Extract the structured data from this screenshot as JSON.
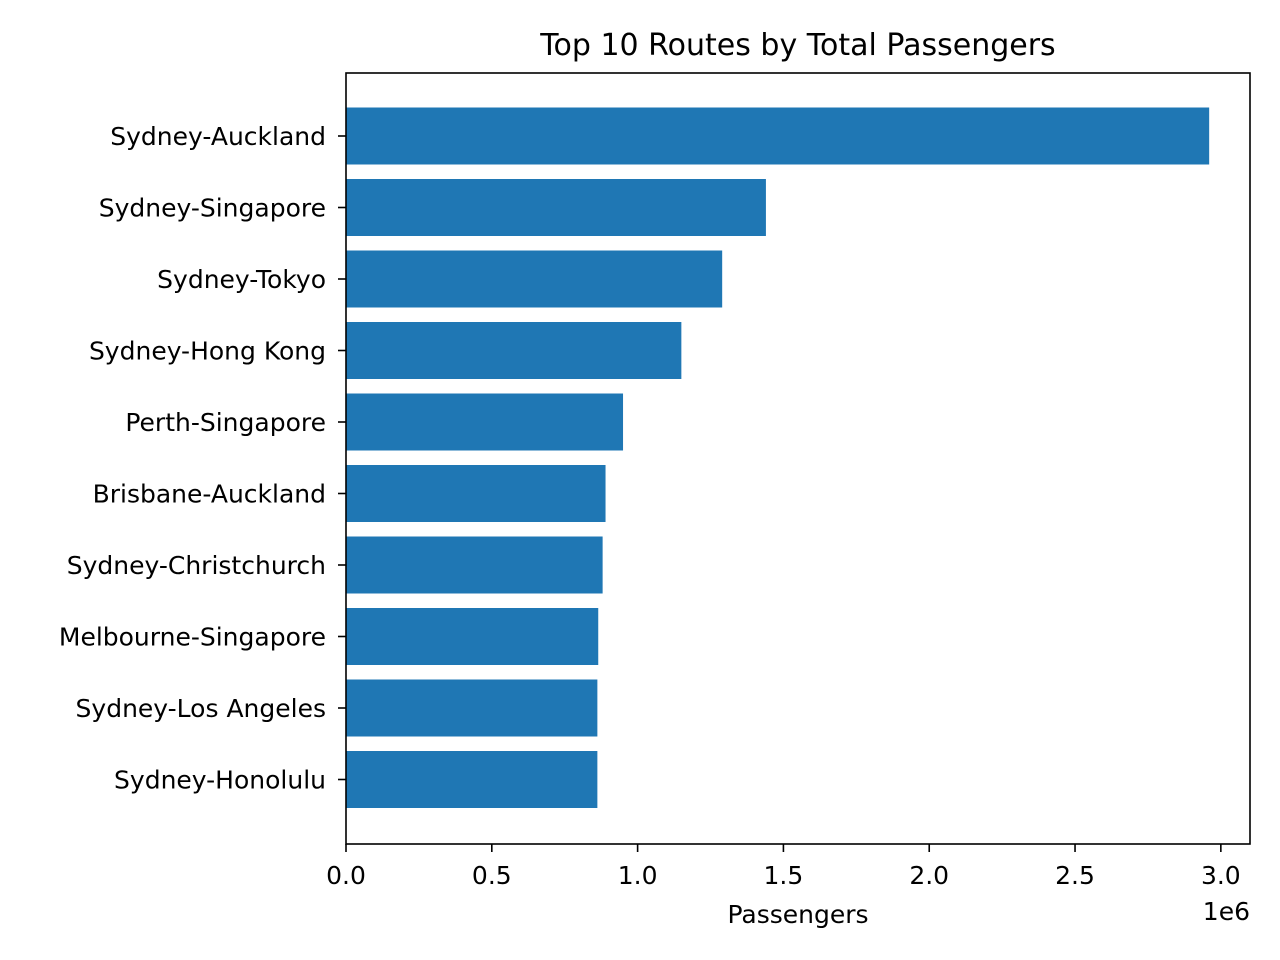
{
  "chart_data": {
    "type": "bar",
    "orientation": "horizontal",
    "title": "Top 10 Routes by Total Passengers",
    "xlabel": "Passengers",
    "ylabel": "",
    "x_offset_label": "1e6",
    "xlim": [
      0,
      3.1
    ],
    "x_ticks": [
      0.0,
      0.5,
      1.0,
      1.5,
      2.0,
      2.5,
      3.0
    ],
    "x_tick_labels": [
      "0.0",
      "0.5",
      "1.0",
      "1.5",
      "2.0",
      "2.5",
      "3.0"
    ],
    "grid": false,
    "legend": "none",
    "bar_color": "#1f77b4",
    "categories": [
      "Sydney-Auckland",
      "Sydney-Singapore",
      "Sydney-Tokyo",
      "Sydney-Hong Kong",
      "Perth-Singapore",
      "Brisbane-Auckland",
      "Sydney-Christchurch",
      "Melbourne-Singapore",
      "Sydney-Los Angeles",
      "Sydney-Honolulu"
    ],
    "values": [
      2.96,
      1.44,
      1.29,
      1.15,
      0.95,
      0.89,
      0.88,
      0.865,
      0.862,
      0.862
    ]
  }
}
